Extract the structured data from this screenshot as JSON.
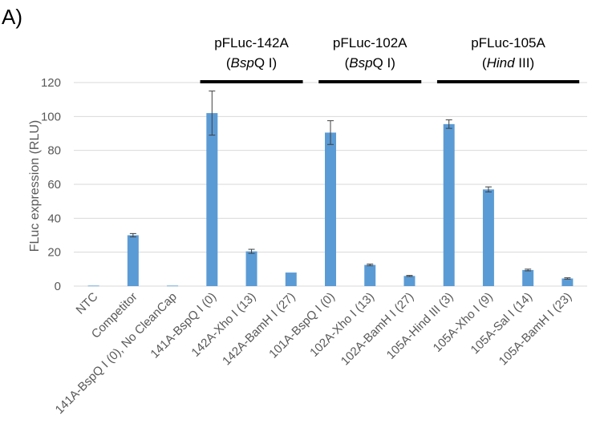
{
  "panel_label": "A)",
  "chart_data": {
    "type": "bar",
    "title": "",
    "xlabel": "",
    "ylabel": "FLuc expression (RLU)",
    "ylim": [
      0,
      120
    ],
    "yticks": [
      0,
      20,
      40,
      60,
      80,
      100,
      120
    ],
    "grid": true,
    "categories": [
      "NTC",
      "Competitor",
      "141A-BspQ I (0), No CleanCap",
      "141A-BspQ I (0)",
      "142A-Xho I (13)",
      "142A-BamH I (27)",
      "101A-BspQ I (0)",
      "102A-Xho I (13)",
      "102A-BamH I (27)",
      "105A-Hind III (3)",
      "105A-Xho I (9)",
      "105A-Sal I (14)",
      "105A-BamH I (23)"
    ],
    "values": [
      0.3,
      30,
      0.3,
      102,
      20.5,
      8,
      90.5,
      12.5,
      6,
      95.5,
      57,
      9.5,
      4.5
    ],
    "errors": [
      0,
      1,
      0,
      13,
      1.2,
      0,
      7,
      0.5,
      0.3,
      2.5,
      1.5,
      0.5,
      0.4
    ],
    "bar_color": "#5B9BD5",
    "groups": [
      {
        "name": "pFLuc-142A",
        "enzyme_prefix": "(",
        "enzyme_italic": "Bsp",
        "enzyme_rest": "Q I)",
        "from": 3,
        "to": 5
      },
      {
        "name": "pFLuc-102A",
        "enzyme_prefix": "(",
        "enzyme_italic": "Bsp",
        "enzyme_rest": "Q I)",
        "from": 6,
        "to": 8
      },
      {
        "name": "pFLuc-105A",
        "enzyme_prefix": "(",
        "enzyme_italic": "Hind",
        "enzyme_rest": " III)",
        "from": 9,
        "to": 12
      }
    ]
  }
}
